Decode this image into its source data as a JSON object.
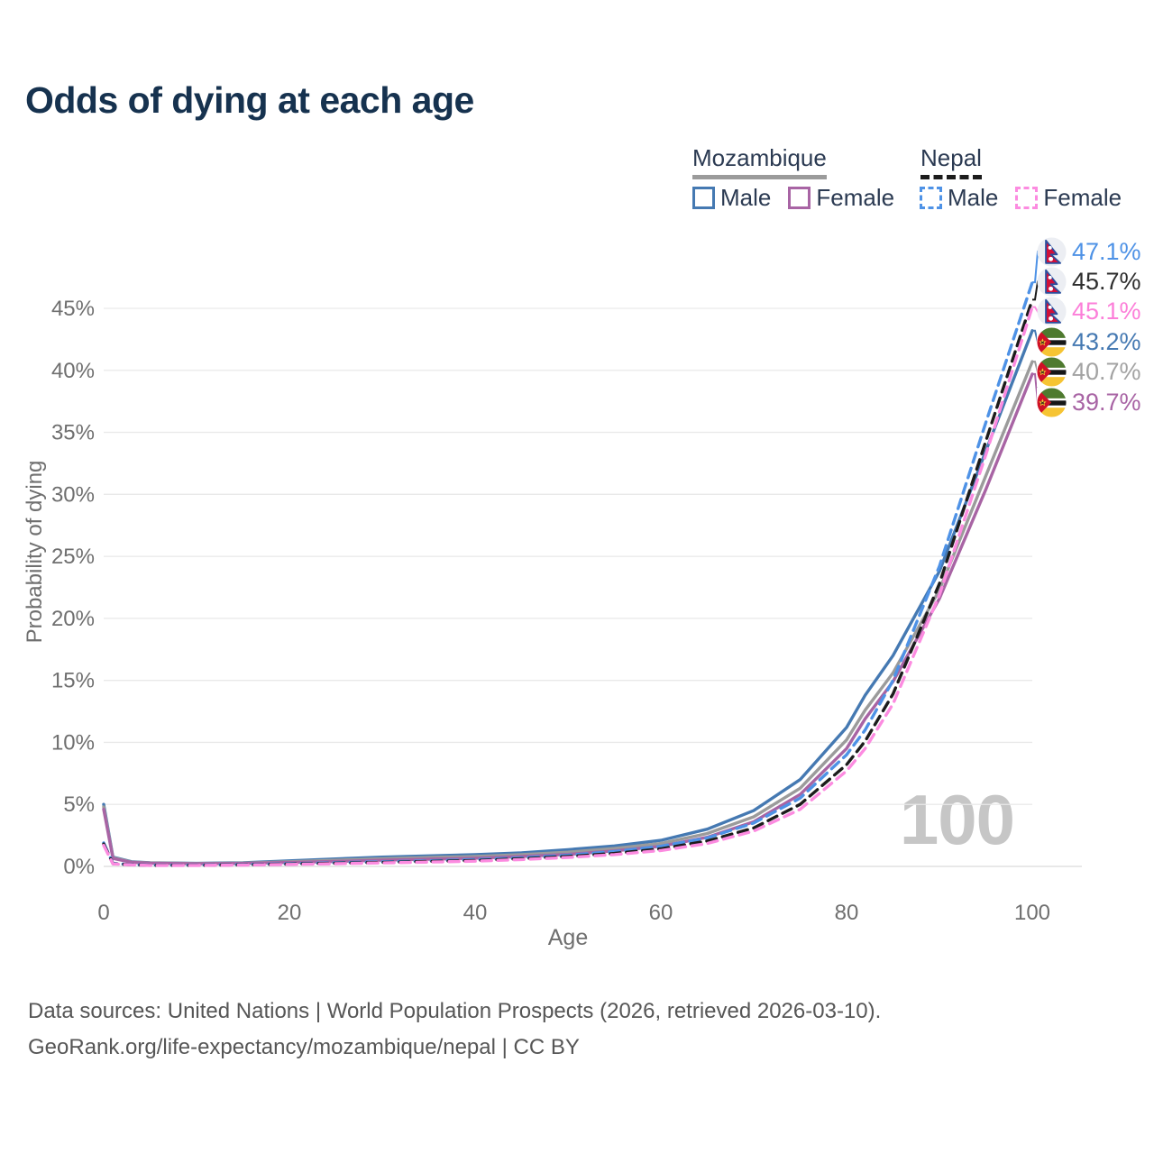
{
  "title": "Odds of dying at each age",
  "watermark": "100",
  "legend": {
    "mozambique": {
      "label": "Mozambique",
      "male": "Male",
      "female": "Female"
    },
    "nepal": {
      "label": "Nepal",
      "male": "Male",
      "female": "Female"
    }
  },
  "colors": {
    "moz_male": "#4579b2",
    "moz_both": "#9b9b9b",
    "moz_female": "#a864a4",
    "nep_male": "#4e92e6",
    "nep_both": "#1c1c1c",
    "nep_female": "#fc8be0",
    "grid": "#e9e9e9",
    "axis_line": "#d9d9d9",
    "axis_text": "#6f6f6f",
    "title_text": "#16324f",
    "watermark_text": "#c6c6c6"
  },
  "chart_data": {
    "type": "line",
    "title": "Odds of dying at each age",
    "xlabel": "Age",
    "ylabel": "Probability of dying",
    "xlim": [
      0,
      100
    ],
    "ylim_percent": [
      0,
      47.5
    ],
    "xticks": [
      0,
      20,
      40,
      60,
      80,
      100
    ],
    "yticks_percent": [
      0,
      5,
      10,
      15,
      20,
      25,
      30,
      35,
      40,
      45
    ],
    "ytick_suffix": "%",
    "grid": "horizontal-only",
    "legend_position": "top-right",
    "x_ages": [
      0,
      1,
      3,
      5,
      10,
      15,
      20,
      25,
      30,
      35,
      40,
      45,
      50,
      55,
      60,
      65,
      70,
      75,
      80,
      82,
      85,
      90,
      95,
      100
    ],
    "unit": "percent probability of dying at each age",
    "series": [
      {
        "name": "Nepal Male",
        "country": "Nepal",
        "sex": "male",
        "line": "dashed",
        "color_key": "nep_male",
        "flag": "nepal",
        "end_label": "47.1%",
        "label_color": "#4e92e6",
        "values": [
          1.9,
          0.25,
          0.14,
          0.1,
          0.1,
          0.15,
          0.22,
          0.3,
          0.37,
          0.45,
          0.55,
          0.7,
          0.9,
          1.2,
          1.62,
          2.3,
          3.5,
          5.5,
          9.0,
          11.0,
          15.0,
          24.2,
          35.8,
          47.1
        ]
      },
      {
        "name": "Nepal Both sexes",
        "country": "Nepal",
        "sex": "both",
        "line": "dashed",
        "color_key": "nep_both",
        "flag": "nepal",
        "end_label": "45.7%",
        "label_color": "#2e2e2e",
        "values": [
          1.8,
          0.22,
          0.13,
          0.09,
          0.09,
          0.13,
          0.19,
          0.26,
          0.32,
          0.4,
          0.48,
          0.62,
          0.8,
          1.05,
          1.42,
          2.05,
          3.1,
          5.0,
          8.2,
          10.1,
          13.9,
          22.8,
          34.3,
          45.7
        ]
      },
      {
        "name": "Nepal Female",
        "country": "Nepal",
        "sex": "female",
        "line": "dashed",
        "color_key": "nep_female",
        "flag": "nepal",
        "end_label": "45.1%",
        "label_color": "#fc7fd9",
        "values": [
          1.7,
          0.2,
          0.12,
          0.08,
          0.08,
          0.11,
          0.16,
          0.22,
          0.28,
          0.35,
          0.42,
          0.55,
          0.72,
          0.95,
          1.28,
          1.85,
          2.85,
          4.6,
          7.7,
          9.5,
          13.1,
          21.9,
          33.2,
          45.1
        ]
      },
      {
        "name": "Mozambique Male",
        "country": "Mozambique",
        "sex": "male",
        "line": "solid",
        "color_key": "moz_male",
        "flag": "mozambique",
        "end_label": "43.2%",
        "label_color": "#4579b2",
        "values": [
          5.0,
          0.75,
          0.38,
          0.3,
          0.25,
          0.3,
          0.45,
          0.6,
          0.75,
          0.85,
          0.95,
          1.1,
          1.35,
          1.65,
          2.1,
          3.0,
          4.5,
          7.0,
          11.2,
          13.8,
          17.0,
          23.8,
          33.5,
          43.2
        ]
      },
      {
        "name": "Mozambique Both sexes",
        "country": "Mozambique",
        "sex": "both",
        "line": "solid",
        "color_key": "moz_both",
        "flag": "mozambique",
        "end_label": "40.7%",
        "label_color": "#a3a3a3",
        "values": [
          4.8,
          0.7,
          0.35,
          0.28,
          0.23,
          0.27,
          0.38,
          0.5,
          0.62,
          0.72,
          0.8,
          0.95,
          1.15,
          1.45,
          1.85,
          2.65,
          4.0,
          6.3,
          10.2,
          12.6,
          15.6,
          22.3,
          31.5,
          40.7
        ]
      },
      {
        "name": "Mozambique Female",
        "country": "Mozambique",
        "sex": "female",
        "line": "solid",
        "color_key": "moz_female",
        "flag": "mozambique",
        "end_label": "39.7%",
        "label_color": "#a864a4",
        "values": [
          4.6,
          0.65,
          0.33,
          0.26,
          0.21,
          0.24,
          0.32,
          0.4,
          0.5,
          0.58,
          0.66,
          0.8,
          0.97,
          1.25,
          1.62,
          2.35,
          3.6,
          5.8,
          9.5,
          11.9,
          14.9,
          21.6,
          30.4,
          39.7
        ]
      }
    ]
  },
  "source": {
    "line1": "Data sources: United Nations | World Population Prospects (2026, retrieved 2026-03-10).",
    "line2": "GeoRank.org/life-expectancy/mozambique/nepal | CC BY"
  }
}
